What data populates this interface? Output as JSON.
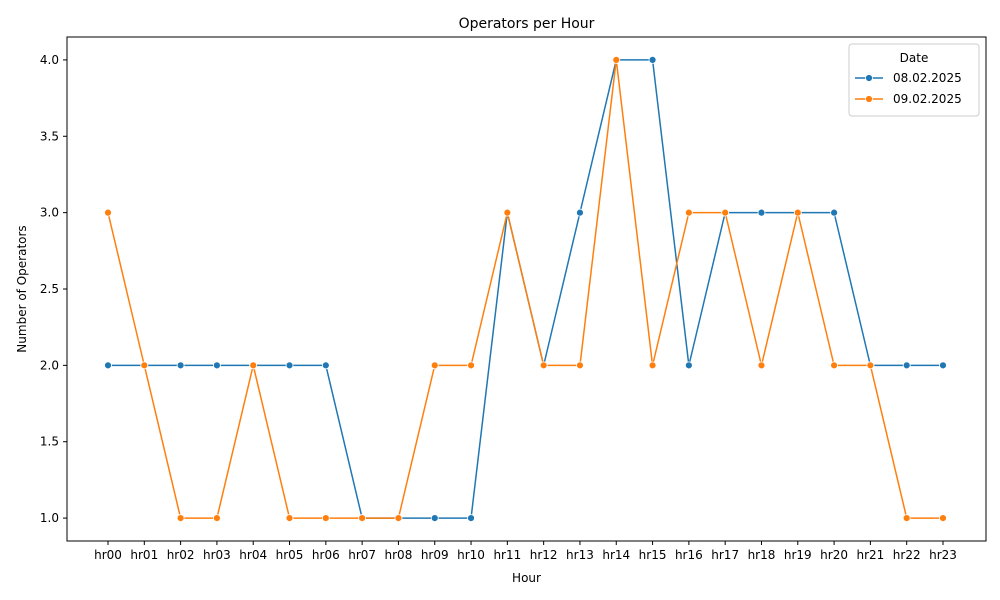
{
  "chart_data": {
    "type": "line",
    "title": "Operators per Hour",
    "xlabel": "Hour",
    "ylabel": "Number of Operators",
    "categories": [
      "hr00",
      "hr01",
      "hr02",
      "hr03",
      "hr04",
      "hr05",
      "hr06",
      "hr07",
      "hr08",
      "hr09",
      "hr10",
      "hr11",
      "hr12",
      "hr13",
      "hr14",
      "hr15",
      "hr16",
      "hr17",
      "hr18",
      "hr19",
      "hr20",
      "hr21",
      "hr22",
      "hr23"
    ],
    "ylim": [
      0.85,
      4.15
    ],
    "yticks": [
      1.0,
      1.5,
      2.0,
      2.5,
      3.0,
      3.5,
      4.0
    ],
    "ytick_labels": [
      "1.0",
      "1.5",
      "2.0",
      "2.5",
      "3.0",
      "3.5",
      "4.0"
    ],
    "grid": false,
    "legend": {
      "title": "Date",
      "placement": "top-right"
    },
    "series": [
      {
        "name": "08.02.2025",
        "color": "#1f77b4",
        "values": [
          2,
          2,
          2,
          2,
          2,
          2,
          2,
          1,
          1,
          1,
          1,
          3,
          2,
          3,
          4,
          4,
          2,
          3,
          3,
          3,
          3,
          2,
          2,
          2
        ]
      },
      {
        "name": "09.02.2025",
        "color": "#ff7f0e",
        "values": [
          3,
          2,
          1,
          1,
          2,
          1,
          1,
          1,
          1,
          2,
          2,
          3,
          2,
          2,
          4,
          2,
          3,
          3,
          2,
          3,
          2,
          2,
          1,
          1
        ]
      }
    ]
  }
}
